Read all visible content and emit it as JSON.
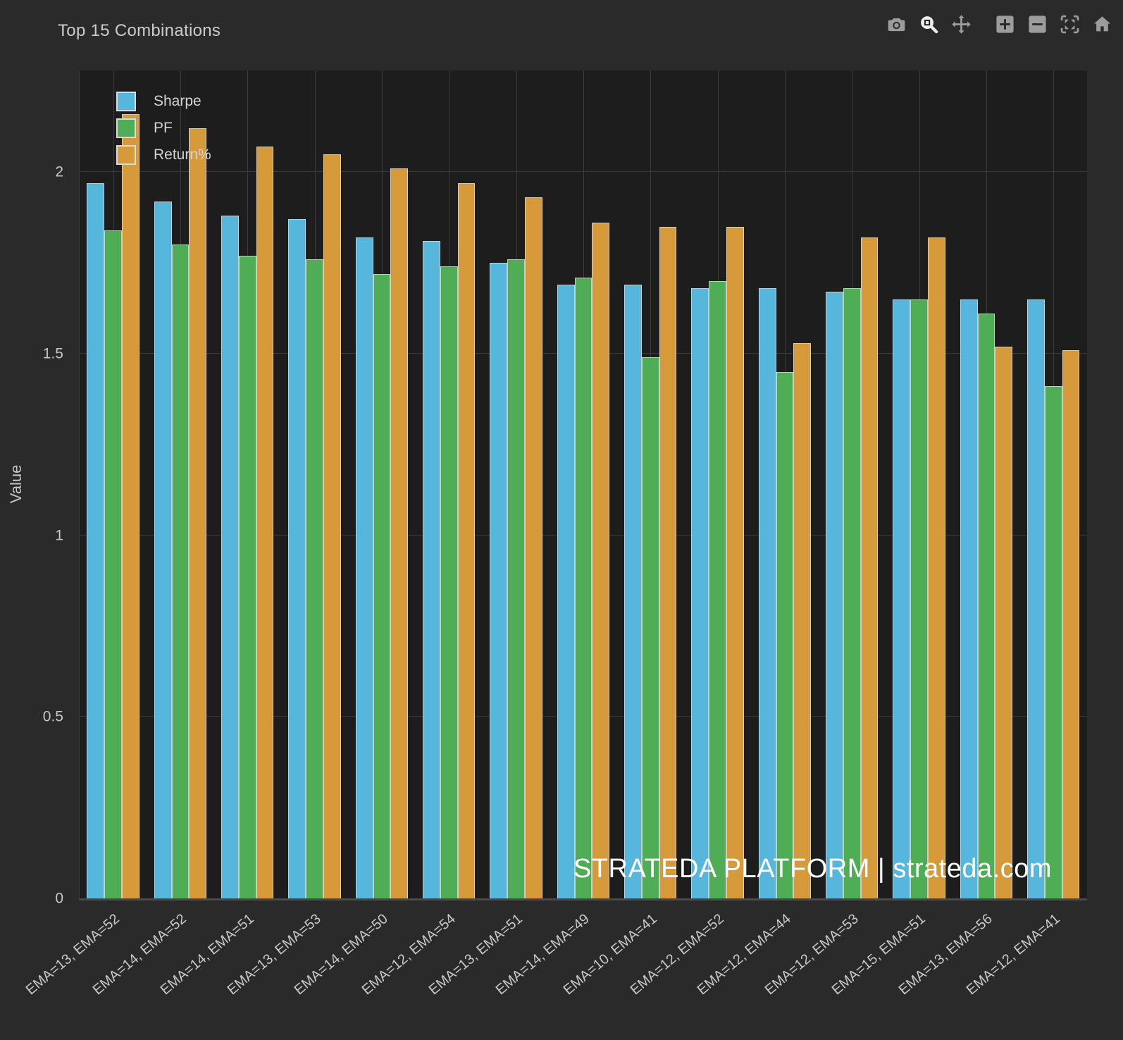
{
  "header": {
    "title": "Top 15 Combinations"
  },
  "toolbar": {
    "active_tool": "zoom",
    "items": [
      {
        "name": "camera",
        "icon": "camera-icon"
      },
      {
        "name": "zoom",
        "icon": "zoom-icon"
      },
      {
        "name": "pan",
        "icon": "pan-icon"
      },
      {
        "name": "zoom-in",
        "icon": "zoom-in-icon"
      },
      {
        "name": "zoom-out",
        "icon": "zoom-out-icon"
      },
      {
        "name": "autoscale",
        "icon": "autoscale-icon"
      },
      {
        "name": "reset-home",
        "icon": "home-icon"
      }
    ]
  },
  "watermark": {
    "text": "STRATEDA PLATFORM | strateda.com"
  },
  "colors": {
    "background": "#2a2a2a",
    "plot_background": "#1d1d1d",
    "gridline": "#3b3b3b",
    "text": "#c8c8c8",
    "sharpe_blue": "#57b6dc",
    "pf_green": "#4ead55",
    "return_orange": "#d69a3a"
  },
  "chart_data": {
    "type": "bar",
    "title": "Top 15 Combinations",
    "xlabel": "",
    "ylabel": "Value",
    "legend_position": "top-left",
    "grid": true,
    "ylim": [
      0,
      2.28
    ],
    "yticks": [
      0,
      0.5,
      1,
      1.5,
      2
    ],
    "categories": [
      "EMA=13, EMA=52",
      "EMA=14, EMA=52",
      "EMA=14, EMA=51",
      "EMA=13, EMA=53",
      "EMA=14, EMA=50",
      "EMA=12, EMA=54",
      "EMA=13, EMA=51",
      "EMA=14, EMA=49",
      "EMA=10, EMA=41",
      "EMA=12, EMA=52",
      "EMA=12, EMA=44",
      "EMA=12, EMA=53",
      "EMA=15, EMA=51",
      "EMA=13, EMA=56",
      "EMA=12, EMA=41"
    ],
    "series": [
      {
        "name": "Sharpe",
        "color": "#57b6dc",
        "values": [
          1.97,
          1.92,
          1.88,
          1.87,
          1.82,
          1.81,
          1.75,
          1.69,
          1.69,
          1.68,
          1.68,
          1.67,
          1.65,
          1.65,
          1.65
        ]
      },
      {
        "name": "PF",
        "color": "#4ead55",
        "values": [
          1.84,
          1.8,
          1.77,
          1.76,
          1.72,
          1.74,
          1.76,
          1.71,
          1.49,
          1.7,
          1.45,
          1.68,
          1.65,
          1.61,
          1.41
        ]
      },
      {
        "name": "Return%",
        "color": "#d69a3a",
        "values": [
          2.16,
          2.12,
          2.07,
          2.05,
          2.01,
          1.97,
          1.93,
          1.86,
          1.85,
          1.85,
          1.53,
          1.82,
          1.82,
          1.52,
          1.51
        ]
      }
    ]
  }
}
